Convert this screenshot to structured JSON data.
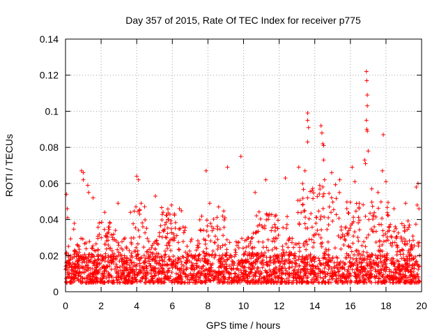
{
  "chart_data": {
    "type": "scatter",
    "title": "Day 357 of 2015, Rate Of TEC Index for receiver p775",
    "xlabel": "GPS time / hours",
    "ylabel": "ROTI / TECUs",
    "xlim": [
      0,
      20
    ],
    "ylim": [
      0,
      0.14
    ],
    "xticks": [
      0,
      2,
      4,
      6,
      8,
      10,
      12,
      14,
      16,
      18,
      20
    ],
    "yticks": [
      0,
      0.02,
      0.04,
      0.06,
      0.08,
      0.1,
      0.12,
      0.14
    ],
    "ytick_labels": [
      "0",
      "0.02",
      "0.04",
      "0.06",
      "0.08",
      "0.1",
      "0.12",
      "0.14"
    ],
    "grid": true,
    "marker": "+",
    "color": "#ff0000",
    "series": [
      {
        "name": "ROTI",
        "points": [
          [
            0.05,
            0.054
          ],
          [
            0.1,
            0.046
          ],
          [
            0.12,
            0.041
          ],
          [
            0.9,
            0.067
          ],
          [
            1.0,
            0.066
          ],
          [
            1.0,
            0.062
          ],
          [
            1.25,
            0.059
          ],
          [
            1.3,
            0.055
          ],
          [
            1.55,
            0.052
          ],
          [
            2.2,
            0.044
          ],
          [
            2.5,
            0.038
          ],
          [
            2.95,
            0.049
          ],
          [
            3.65,
            0.044
          ],
          [
            4.0,
            0.064
          ],
          [
            4.1,
            0.062
          ],
          [
            4.25,
            0.049
          ],
          [
            5.05,
            0.053
          ],
          [
            5.95,
            0.048
          ],
          [
            6.4,
            0.046
          ],
          [
            7.9,
            0.067
          ],
          [
            8.1,
            0.049
          ],
          [
            8.6,
            0.047
          ],
          [
            9.1,
            0.069
          ],
          [
            9.85,
            0.075
          ],
          [
            10.65,
            0.055
          ],
          [
            11.25,
            0.062
          ],
          [
            12.35,
            0.063
          ],
          [
            13.1,
            0.069
          ],
          [
            13.45,
            0.067
          ],
          [
            13.6,
            0.099
          ],
          [
            13.6,
            0.095
          ],
          [
            13.6,
            0.083
          ],
          [
            13.65,
            0.091
          ],
          [
            13.85,
            0.056
          ],
          [
            14.35,
            0.092
          ],
          [
            14.4,
            0.088
          ],
          [
            14.45,
            0.082
          ],
          [
            14.5,
            0.081
          ],
          [
            14.5,
            0.073
          ],
          [
            14.55,
            0.062
          ],
          [
            14.95,
            0.066
          ],
          [
            15.4,
            0.062
          ],
          [
            15.8,
            0.046
          ],
          [
            16.1,
            0.069
          ],
          [
            16.25,
            0.061
          ],
          [
            16.5,
            0.049
          ],
          [
            16.8,
            0.073
          ],
          [
            16.85,
            0.071
          ],
          [
            16.9,
            0.122
          ],
          [
            16.92,
            0.117
          ],
          [
            16.95,
            0.109
          ],
          [
            16.95,
            0.103
          ],
          [
            16.9,
            0.095
          ],
          [
            16.92,
            0.09
          ],
          [
            16.95,
            0.089
          ],
          [
            17.0,
            0.078
          ],
          [
            17.2,
            0.057
          ],
          [
            17.55,
            0.055
          ],
          [
            17.8,
            0.067
          ],
          [
            17.85,
            0.087
          ],
          [
            18.0,
            0.061
          ],
          [
            19.7,
            0.058
          ],
          [
            19.8,
            0.06
          ],
          [
            19.75,
            0.048
          ],
          [
            19.85,
            0.046
          ],
          [
            19.1,
            0.049
          ],
          [
            18.45,
            0.046
          ]
        ]
      }
    ],
    "dense_band": {
      "description": "dense noise floor of ROTI points",
      "x_range": [
        0,
        19.9
      ],
      "typical_range": [
        0.005,
        0.03
      ],
      "bursts": [
        {
          "x": [
            0.0,
            0.5
          ],
          "max": 0.045
        },
        {
          "x": [
            1.8,
            3.0
          ],
          "max": 0.04
        },
        {
          "x": [
            3.8,
            4.6
          ],
          "max": 0.048
        },
        {
          "x": [
            5.2,
            6.8
          ],
          "max": 0.047
        },
        {
          "x": [
            7.5,
            9.0
          ],
          "max": 0.045
        },
        {
          "x": [
            10.5,
            12.5
          ],
          "max": 0.045
        },
        {
          "x": [
            13.0,
            15.5
          ],
          "max": 0.06
        },
        {
          "x": [
            15.5,
            18.2
          ],
          "max": 0.05
        },
        {
          "x": [
            18.2,
            19.9
          ],
          "max": 0.04
        }
      ]
    }
  }
}
